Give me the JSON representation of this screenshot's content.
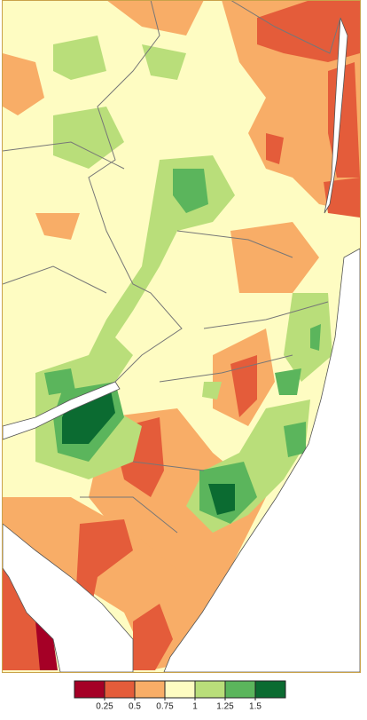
{
  "legend": {
    "colors": [
      "#a50026",
      "#e45c3a",
      "#f8ad67",
      "#fefcc2",
      "#b9de7a",
      "#5bb55c",
      "#0b6b31"
    ],
    "ticks": [
      0.25,
      0.5,
      0.75,
      1,
      1.25,
      1.5
    ]
  }
}
